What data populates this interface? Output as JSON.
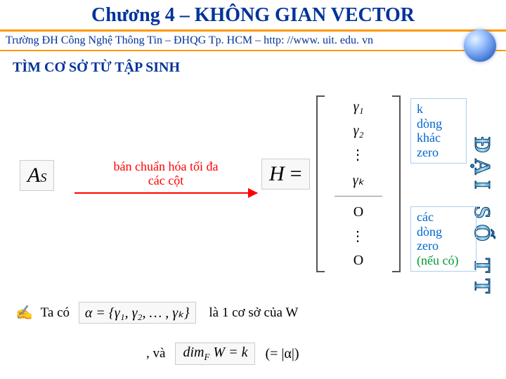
{
  "title": "Chương 4 – KHÔNG GIAN VECTOR",
  "subtitle": "Trường ĐH Công Nghệ Thông Tin – ĐHQG Tp. HCM – http: //www. uit. edu. vn",
  "section_heading": "TÌM CƠ SỞ TỪ TẬP SINH",
  "vertical_brand": "ĐẠI SỐ TT",
  "as_symbol": {
    "base": "A",
    "sub": "S"
  },
  "arrow_label_l1": "bán chuẩn hóa tối đa",
  "arrow_label_l2": "các cột",
  "h_symbol": "H",
  "equals": "=",
  "matrix": {
    "rows": [
      "γ₁",
      "γ₂",
      "⋮",
      "γₖ",
      "O",
      "⋮",
      "O"
    ]
  },
  "note_top_l1": "k",
  "note_top_l2": "dòng",
  "note_top_l3": "khác",
  "note_top_l4": "zero",
  "note_bottom_l1": "các",
  "note_bottom_l2": "dòng",
  "note_bottom_l3": "zero",
  "note_bottom_l4": "(nếu có)",
  "hand_glyph": "✍",
  "ta_co": "Ta có",
  "alpha_set": "α = {γ₁, γ₂, … , γₖ}",
  "basis_text": "là 1 cơ sở của W",
  "and_text": ", và",
  "dim_expr": "dim_F W = k",
  "eq_alpha": "(= |α|)",
  "colors": {
    "title": "#003399",
    "accent_line": "#ff9900",
    "arrow": "#ff0000",
    "note_blue": "#0066cc",
    "note_green": "#009933",
    "background": "#ffffff"
  }
}
